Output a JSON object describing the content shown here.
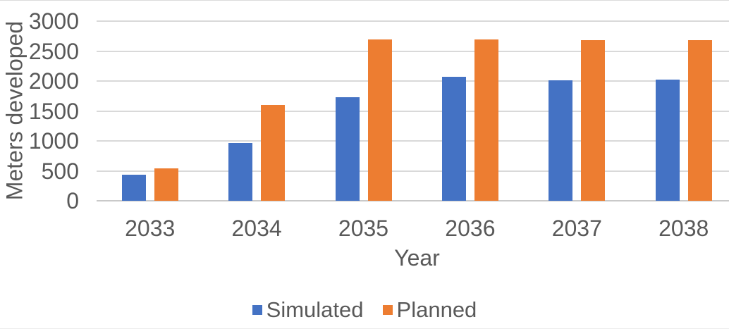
{
  "chart_data": {
    "type": "bar",
    "title": "",
    "categories": [
      "2033",
      "2034",
      "2035",
      "2036",
      "2037",
      "2038"
    ],
    "series": [
      {
        "name": "Simulated",
        "color": "#4472C4",
        "values": [
          440,
          970,
          1730,
          2075,
          2015,
          2020
        ]
      },
      {
        "name": "Planned",
        "color": "#ED7D31",
        "values": [
          540,
          1600,
          2690,
          2690,
          2680,
          2680
        ]
      }
    ],
    "xlabel": "Year",
    "ylabel": "Meters developed",
    "ylim": [
      0,
      3000
    ],
    "yticks": [
      0,
      500,
      1000,
      1500,
      2000,
      2500,
      3000
    ],
    "grid": true,
    "legend_position": "bottom",
    "appearance": {
      "background": "#FFFFFF",
      "text_color": "#595959",
      "gridline_color": "#D9D9D9",
      "axis_line_color": "#C9C9C9"
    }
  }
}
